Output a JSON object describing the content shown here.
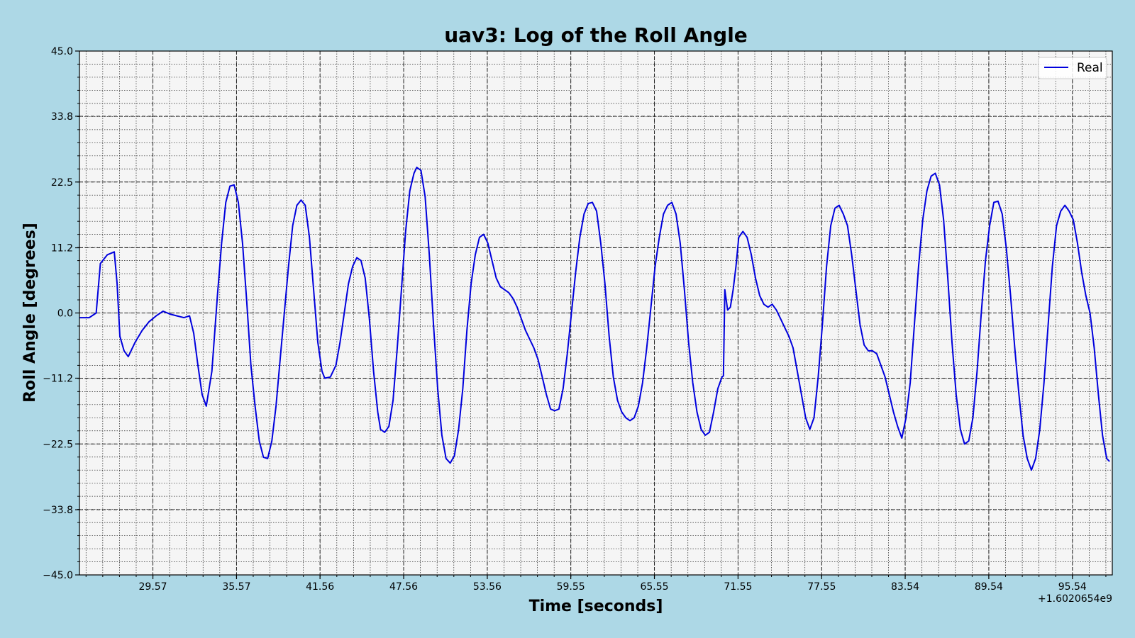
{
  "chart_data": {
    "type": "line",
    "title": "uav3: Log of the Roll Angle",
    "xlabel": "Time [seconds]",
    "ylabel": "Roll Angle [degrees]",
    "x_offset_label": "+1.6020654e9",
    "xlim": [
      24.3,
      98.4
    ],
    "ylim": [
      -45.0,
      45.0
    ],
    "x_ticks": [
      29.57,
      35.57,
      41.56,
      47.56,
      53.56,
      59.55,
      65.55,
      71.55,
      77.55,
      83.54,
      89.54,
      95.54
    ],
    "x_tick_labels": [
      "29.57",
      "35.57",
      "41.56",
      "47.56",
      "53.56",
      "59.55",
      "65.55",
      "71.55",
      "77.55",
      "83.54",
      "89.54",
      "95.54"
    ],
    "y_ticks": [
      -45.0,
      -33.8,
      -22.5,
      -11.2,
      0.0,
      11.2,
      22.5,
      33.8,
      45.0
    ],
    "y_tick_labels": [
      "−45.0",
      "−33.8",
      "−22.5",
      "−11.2",
      "0.0",
      "11.2",
      "22.5",
      "33.8",
      "45.0"
    ],
    "grid": true,
    "legend_position": "top-right",
    "series": [
      {
        "name": "Real",
        "color": "#0000dd",
        "points": [
          [
            24.3,
            -0.8
          ],
          [
            25.0,
            -0.8
          ],
          [
            25.5,
            0.0
          ],
          [
            25.8,
            8.5
          ],
          [
            26.3,
            10.0
          ],
          [
            26.8,
            10.5
          ],
          [
            27.0,
            5.0
          ],
          [
            27.2,
            -4.0
          ],
          [
            27.5,
            -6.5
          ],
          [
            27.8,
            -7.5
          ],
          [
            28.3,
            -5.0
          ],
          [
            28.8,
            -3.0
          ],
          [
            29.3,
            -1.5
          ],
          [
            29.8,
            -0.5
          ],
          [
            30.3,
            0.3
          ],
          [
            30.8,
            -0.2
          ],
          [
            31.3,
            -0.5
          ],
          [
            31.8,
            -0.8
          ],
          [
            32.2,
            -0.5
          ],
          [
            32.5,
            -3.5
          ],
          [
            32.8,
            -9.0
          ],
          [
            33.1,
            -14.0
          ],
          [
            33.4,
            -16.0
          ],
          [
            33.8,
            -10.0
          ],
          [
            34.2,
            3.0
          ],
          [
            34.5,
            12.0
          ],
          [
            34.8,
            19.0
          ],
          [
            35.1,
            21.8
          ],
          [
            35.4,
            22.0
          ],
          [
            35.7,
            19.0
          ],
          [
            36.0,
            12.0
          ],
          [
            36.3,
            2.0
          ],
          [
            36.6,
            -9.0
          ],
          [
            36.9,
            -16.0
          ],
          [
            37.2,
            -22.0
          ],
          [
            37.5,
            -24.8
          ],
          [
            37.8,
            -25.0
          ],
          [
            38.1,
            -22.0
          ],
          [
            38.4,
            -16.0
          ],
          [
            38.7,
            -8.0
          ],
          [
            39.0,
            0.0
          ],
          [
            39.3,
            8.0
          ],
          [
            39.6,
            15.0
          ],
          [
            39.9,
            18.5
          ],
          [
            40.2,
            19.4
          ],
          [
            40.5,
            18.5
          ],
          [
            40.8,
            13.0
          ],
          [
            41.1,
            4.0
          ],
          [
            41.4,
            -5.0
          ],
          [
            41.7,
            -10.0
          ],
          [
            41.9,
            -11.2
          ],
          [
            42.3,
            -11.0
          ],
          [
            42.7,
            -9.0
          ],
          [
            43.0,
            -5.0
          ],
          [
            43.3,
            0.0
          ],
          [
            43.6,
            5.0
          ],
          [
            43.9,
            8.0
          ],
          [
            44.2,
            9.5
          ],
          [
            44.5,
            9.0
          ],
          [
            44.8,
            6.0
          ],
          [
            45.1,
            -1.0
          ],
          [
            45.4,
            -10.0
          ],
          [
            45.7,
            -17.0
          ],
          [
            45.9,
            -20.0
          ],
          [
            46.2,
            -20.5
          ],
          [
            46.5,
            -19.5
          ],
          [
            46.8,
            -15.0
          ],
          [
            47.1,
            -6.0
          ],
          [
            47.4,
            4.0
          ],
          [
            47.7,
            14.0
          ],
          [
            48.0,
            21.0
          ],
          [
            48.3,
            24.0
          ],
          [
            48.5,
            25.0
          ],
          [
            48.8,
            24.5
          ],
          [
            49.1,
            20.0
          ],
          [
            49.4,
            10.0
          ],
          [
            49.7,
            -2.0
          ],
          [
            50.0,
            -13.0
          ],
          [
            50.3,
            -21.0
          ],
          [
            50.6,
            -25.0
          ],
          [
            50.9,
            -25.8
          ],
          [
            51.2,
            -24.5
          ],
          [
            51.5,
            -20.0
          ],
          [
            51.8,
            -13.0
          ],
          [
            52.1,
            -3.0
          ],
          [
            52.4,
            5.0
          ],
          [
            52.7,
            10.0
          ],
          [
            53.0,
            13.0
          ],
          [
            53.3,
            13.5
          ],
          [
            53.6,
            12.0
          ],
          [
            53.9,
            9.0
          ],
          [
            54.2,
            6.0
          ],
          [
            54.5,
            4.5
          ],
          [
            54.8,
            4.0
          ],
          [
            55.1,
            3.5
          ],
          [
            55.4,
            2.5
          ],
          [
            55.7,
            1.0
          ],
          [
            56.0,
            -1.0
          ],
          [
            56.3,
            -3.0
          ],
          [
            56.6,
            -4.5
          ],
          [
            56.9,
            -6.0
          ],
          [
            57.2,
            -8.0
          ],
          [
            57.5,
            -11.0
          ],
          [
            57.8,
            -14.0
          ],
          [
            58.1,
            -16.5
          ],
          [
            58.4,
            -16.8
          ],
          [
            58.7,
            -16.5
          ],
          [
            59.0,
            -13.0
          ],
          [
            59.3,
            -7.0
          ],
          [
            59.6,
            0.0
          ],
          [
            59.9,
            7.0
          ],
          [
            60.2,
            13.0
          ],
          [
            60.5,
            17.0
          ],
          [
            60.8,
            18.8
          ],
          [
            61.1,
            19.0
          ],
          [
            61.4,
            17.5
          ],
          [
            61.7,
            12.0
          ],
          [
            62.0,
            5.0
          ],
          [
            62.3,
            -4.0
          ],
          [
            62.6,
            -11.0
          ],
          [
            62.9,
            -15.0
          ],
          [
            63.2,
            -17.0
          ],
          [
            63.5,
            -18.0
          ],
          [
            63.8,
            -18.5
          ],
          [
            64.1,
            -18.0
          ],
          [
            64.4,
            -16.0
          ],
          [
            64.7,
            -12.0
          ],
          [
            65.0,
            -6.0
          ],
          [
            65.3,
            1.0
          ],
          [
            65.6,
            8.0
          ],
          [
            65.9,
            13.0
          ],
          [
            66.2,
            17.0
          ],
          [
            66.5,
            18.5
          ],
          [
            66.8,
            19.0
          ],
          [
            67.1,
            17.0
          ],
          [
            67.4,
            12.0
          ],
          [
            67.7,
            4.0
          ],
          [
            68.0,
            -5.0
          ],
          [
            68.3,
            -12.0
          ],
          [
            68.6,
            -17.0
          ],
          [
            68.9,
            -20.0
          ],
          [
            69.2,
            -21.0
          ],
          [
            69.5,
            -20.5
          ],
          [
            69.8,
            -17.0
          ],
          [
            70.1,
            -13.0
          ],
          [
            70.4,
            -11.0
          ],
          [
            70.5,
            -10.8
          ],
          [
            70.6,
            4.0
          ],
          [
            70.8,
            0.5
          ],
          [
            71.0,
            1.0
          ],
          [
            71.2,
            4.0
          ],
          [
            71.4,
            8.0
          ],
          [
            71.6,
            13.0
          ],
          [
            71.9,
            14.0
          ],
          [
            72.2,
            13.0
          ],
          [
            72.5,
            10.0
          ],
          [
            72.8,
            6.0
          ],
          [
            73.1,
            3.0
          ],
          [
            73.4,
            1.5
          ],
          [
            73.7,
            1.0
          ],
          [
            74.0,
            1.5
          ],
          [
            74.3,
            0.5
          ],
          [
            74.6,
            -1.0
          ],
          [
            74.9,
            -2.5
          ],
          [
            75.2,
            -4.0
          ],
          [
            75.5,
            -6.0
          ],
          [
            75.8,
            -10.0
          ],
          [
            76.1,
            -14.0
          ],
          [
            76.4,
            -18.0
          ],
          [
            76.7,
            -20.0
          ],
          [
            77.0,
            -18.0
          ],
          [
            77.3,
            -11.0
          ],
          [
            77.6,
            -2.0
          ],
          [
            77.9,
            8.0
          ],
          [
            78.2,
            15.0
          ],
          [
            78.5,
            18.0
          ],
          [
            78.8,
            18.5
          ],
          [
            79.1,
            17.0
          ],
          [
            79.4,
            15.0
          ],
          [
            79.7,
            10.0
          ],
          [
            80.0,
            4.0
          ],
          [
            80.3,
            -2.0
          ],
          [
            80.6,
            -5.5
          ],
          [
            80.9,
            -6.5
          ],
          [
            81.2,
            -6.5
          ],
          [
            81.5,
            -7.0
          ],
          [
            81.8,
            -9.0
          ],
          [
            82.1,
            -11.0
          ],
          [
            82.4,
            -14.0
          ],
          [
            82.7,
            -17.0
          ],
          [
            83.0,
            -19.5
          ],
          [
            83.3,
            -21.5
          ],
          [
            83.6,
            -18.0
          ],
          [
            83.9,
            -12.0
          ],
          [
            84.2,
            -2.0
          ],
          [
            84.5,
            8.0
          ],
          [
            84.8,
            16.0
          ],
          [
            85.1,
            21.0
          ],
          [
            85.4,
            23.5
          ],
          [
            85.7,
            24.0
          ],
          [
            86.0,
            22.0
          ],
          [
            86.3,
            16.0
          ],
          [
            86.6,
            6.0
          ],
          [
            86.9,
            -5.0
          ],
          [
            87.2,
            -14.0
          ],
          [
            87.5,
            -20.0
          ],
          [
            87.8,
            -22.5
          ],
          [
            88.1,
            -22.0
          ],
          [
            88.4,
            -18.0
          ],
          [
            88.7,
            -10.0
          ],
          [
            89.0,
            0.0
          ],
          [
            89.3,
            9.0
          ],
          [
            89.6,
            15.0
          ],
          [
            89.9,
            19.0
          ],
          [
            90.2,
            19.2
          ],
          [
            90.5,
            17.0
          ],
          [
            90.8,
            11.0
          ],
          [
            91.1,
            3.0
          ],
          [
            91.4,
            -6.0
          ],
          [
            91.7,
            -14.0
          ],
          [
            92.0,
            -21.0
          ],
          [
            92.3,
            -25.0
          ],
          [
            92.6,
            -27.0
          ],
          [
            92.9,
            -25.0
          ],
          [
            93.2,
            -20.0
          ],
          [
            93.5,
            -12.0
          ],
          [
            93.8,
            -2.0
          ],
          [
            94.1,
            8.0
          ],
          [
            94.4,
            15.0
          ],
          [
            94.7,
            17.5
          ],
          [
            95.0,
            18.5
          ],
          [
            95.3,
            17.5
          ],
          [
            95.6,
            16.0
          ],
          [
            95.9,
            12.0
          ],
          [
            96.2,
            7.0
          ],
          [
            96.5,
            3.0
          ],
          [
            96.8,
            0.0
          ],
          [
            97.1,
            -6.0
          ],
          [
            97.4,
            -14.0
          ],
          [
            97.7,
            -21.0
          ],
          [
            98.0,
            -25.0
          ],
          [
            98.2,
            -25.5
          ]
        ]
      }
    ]
  }
}
